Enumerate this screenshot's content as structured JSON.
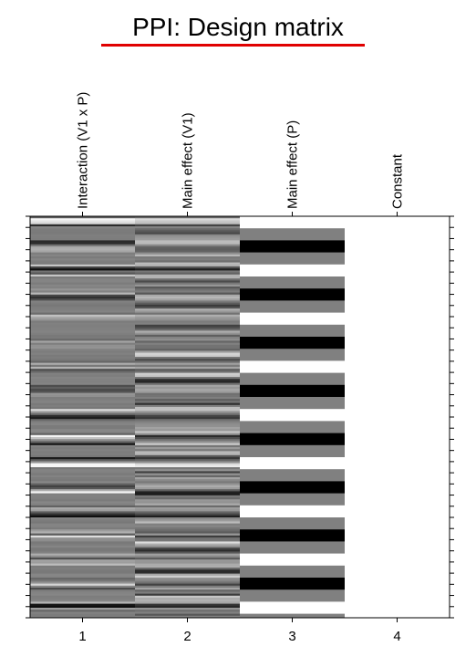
{
  "title": "PPI: Design matrix",
  "colors": {
    "title_underline": "#e00000",
    "axis": "#000000",
    "low": "#000000",
    "high": "#ffffff"
  },
  "chart_data": {
    "type": "heatmap",
    "title": "PPI: Design matrix",
    "columns": [
      "Interaction (V1 x P)",
      "Main effect (V1)",
      "Main effect (P)",
      "Constant"
    ],
    "x_tick_labels": [
      "1",
      "2",
      "3",
      "4"
    ],
    "column_label_orientation": "vertical",
    "n_rows": 200,
    "value_range": [
      0,
      1
    ],
    "colormap": "grayscale (0 = black, 1 = white)",
    "column_profiles": {
      "Interaction (V1 x P)": {
        "baseline": 0.5,
        "range": [
          0.1,
          0.95
        ],
        "pattern": "alternating dark/bright bands on grey baseline"
      },
      "Main effect (V1)": {
        "baseline": 0.5,
        "range": [
          0.1,
          0.9
        ],
        "pattern": "fine grey striation"
      },
      "Main effect (P)": {
        "values": [
          0.0,
          0.5,
          1.0
        ],
        "pattern": "block design: bright, grey, dark, grey, repeating"
      },
      "Constant": {
        "values": [
          1.0
        ],
        "pattern": "uniform white"
      }
    }
  }
}
